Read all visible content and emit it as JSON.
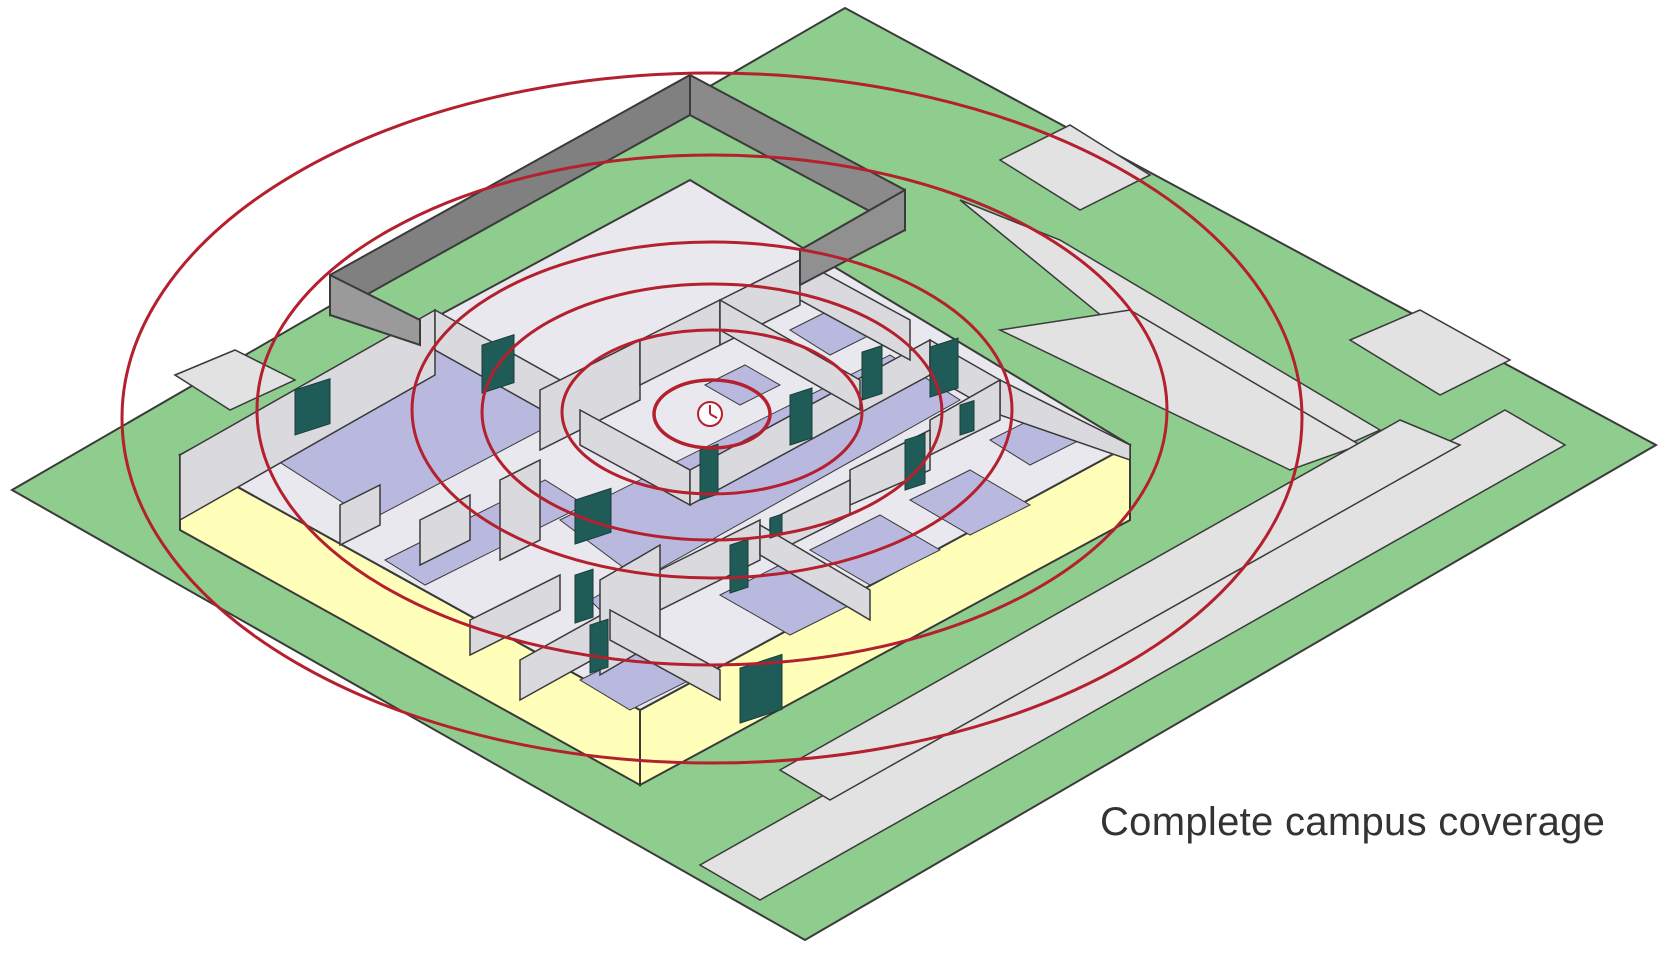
{
  "diagram": {
    "caption": "Complete campus coverage",
    "rings": 6,
    "colors": {
      "grass": "#8fcd8f",
      "pavement": "#e2e2e2",
      "floor": "#e8e8ee",
      "room_floor": "#b9b9e0",
      "wall_top": "#ffffff",
      "wall_face": "#d9d9de",
      "outer_wall_front": "#ffffb9",
      "dark_wall": "#808080",
      "door": "#1f5c58",
      "ring": "#b4202e",
      "outline": "#3a3a3a"
    },
    "icons": {
      "center": "clock-icon",
      "door": "door-icon"
    }
  }
}
